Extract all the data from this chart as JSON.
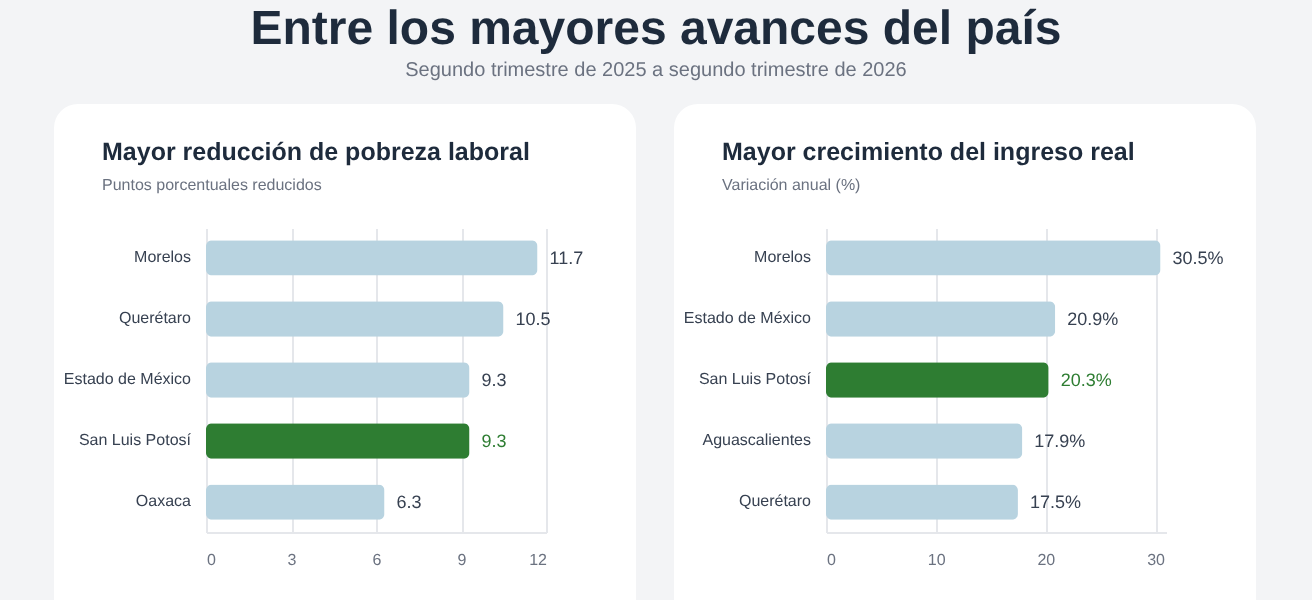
{
  "chart_data": [
    {
      "type": "other",
      "title": "Entre los mayores avances del país",
      "subtitle": "Segundo trimestre de 2025 a segundo trimestre de 2026"
    },
    {
      "type": "bar",
      "orientation": "horizontal",
      "title": "Mayor reducción de pobreza laboral",
      "subtitle": "Puntos porcentuales reducidos",
      "categories": [
        "Morelos",
        "Querétaro",
        "Estado de México",
        "San Luis Potosí",
        "Oaxaca"
      ],
      "values": [
        11.7,
        10.5,
        9.3,
        9.3,
        6.3
      ],
      "colors": [
        "#b8d3e0",
        "#b8d3e0",
        "#b8d3e0",
        "#2e7d32",
        "#b8d3e0"
      ],
      "data_labels": true,
      "xlim": [
        0,
        12
      ],
      "xticks": [
        0,
        3,
        6,
        9,
        12
      ],
      "grid": "x"
    },
    {
      "type": "bar",
      "orientation": "horizontal",
      "title": "Mayor crecimiento del ingreso real",
      "subtitle": "Variación anual (%)",
      "categories": [
        "Morelos",
        "Estado de México",
        "San Luis Potosí",
        "Aguascalientes",
        "Querétaro"
      ],
      "values": [
        30.5,
        20.9,
        20.3,
        17.9,
        17.5
      ],
      "colors": [
        "#b8d3e0",
        "#b8d3e0",
        "#2e7d32",
        "#b8d3e0",
        "#b8d3e0"
      ],
      "value_labels": [
        "30.5%",
        "20.9%",
        "20.3%",
        "17.9%",
        "17.5%"
      ],
      "xlim": [
        0,
        31
      ],
      "xticks": [
        0,
        10,
        20,
        30
      ],
      "grid": "x"
    }
  ]
}
